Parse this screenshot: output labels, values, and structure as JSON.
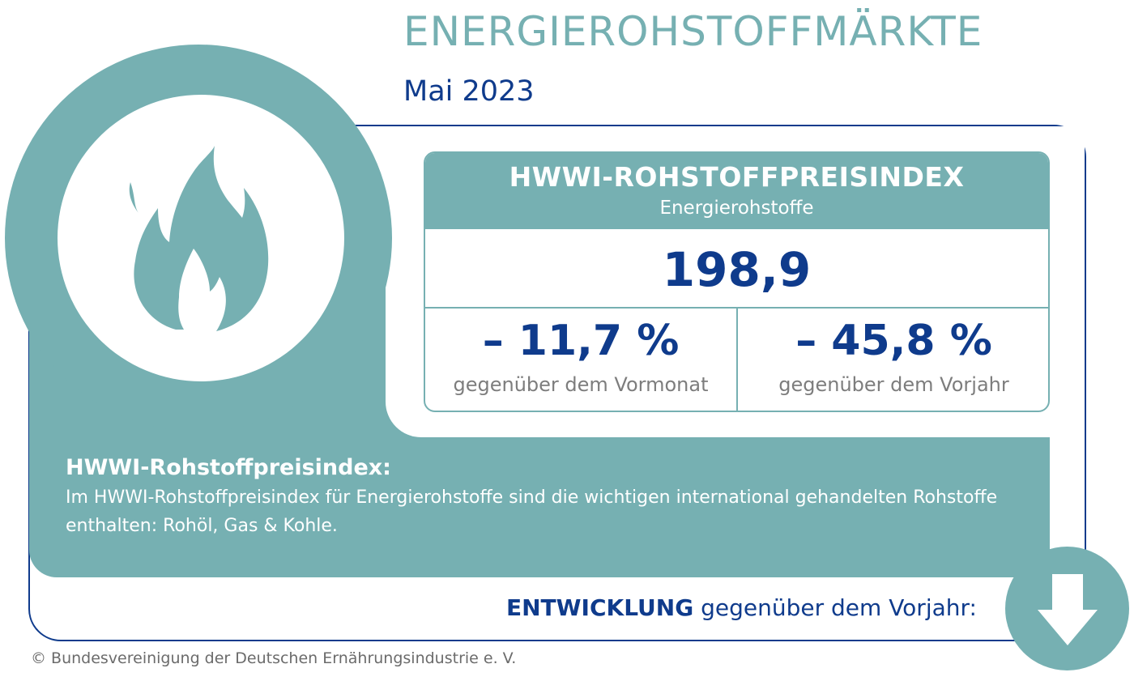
{
  "header": {
    "title": "ENERGIEROHSTOFFMÄRKTE",
    "subtitle": "Mai 2023"
  },
  "index_card": {
    "title": "HWWI-ROHSTOFFPREISINDEX",
    "subtitle": "Energierohstoffe",
    "value": "198,9",
    "change_month": "– 11,7 %",
    "change_month_label": "gegenüber dem Vormonat",
    "change_year": "– 45,8 %",
    "change_year_label": "gegenüber dem Vorjahr"
  },
  "info": {
    "heading": "HWWI-Rohstoffpreisindex:",
    "text": "Im HWWI-Rohstoffpreisindex für Energierohstoffe sind die wichtigen international gehandelten Rohstoffe enthalten: Rohöl, Gas & Kohle."
  },
  "trend": {
    "label_bold": "ENTWICKLUNG",
    "label_rest": " gegenüber dem Vorjahr:",
    "direction_icon": "arrow-down-icon"
  },
  "footer": {
    "copyright": "© Bundesvereinigung der Deutschen Ernährungsindustrie e. V."
  },
  "icons": {
    "main": "flame-icon"
  },
  "colors": {
    "teal": "#76b0b2",
    "navy": "#0f3b8c",
    "gray_text": "#7d7d7d"
  }
}
